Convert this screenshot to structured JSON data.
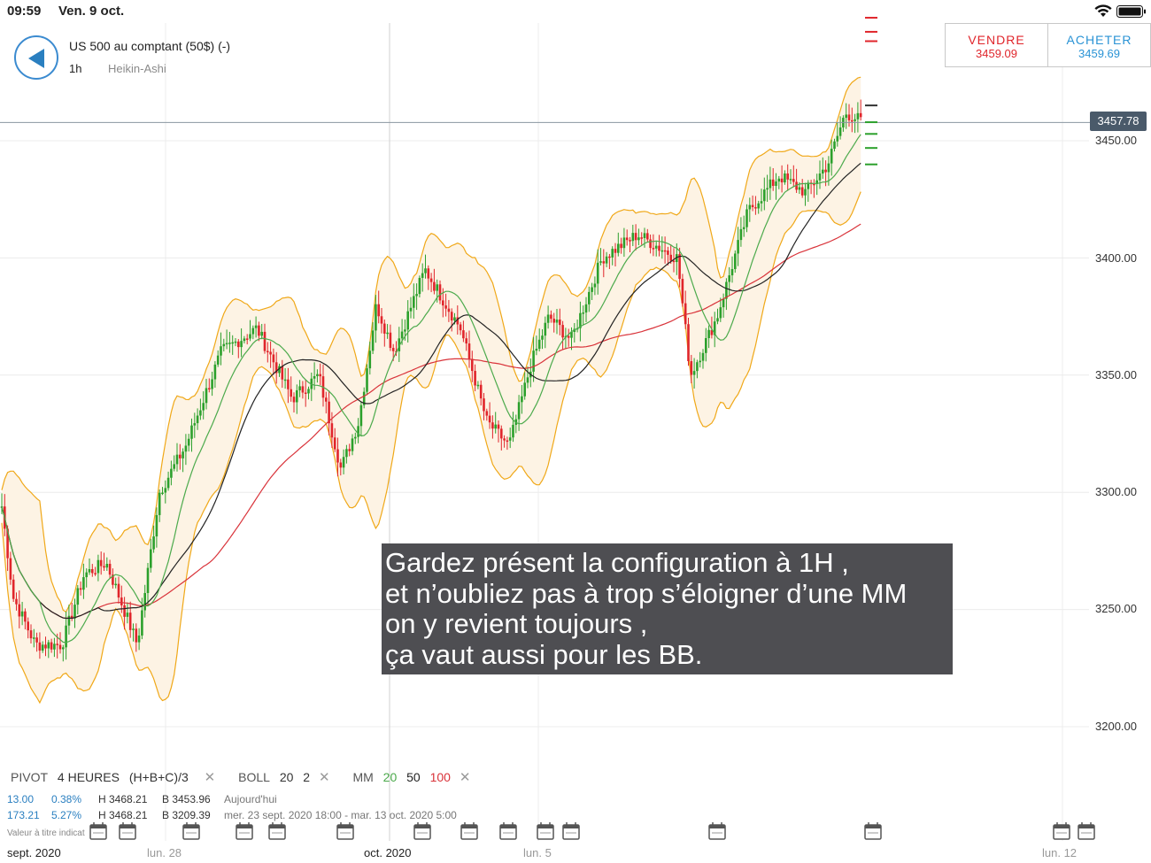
{
  "status_bar": {
    "time": "09:59",
    "date": "Ven. 9 oct."
  },
  "header": {
    "instrument": "US 500 au comptant (50$) (-)",
    "timeframe": "1h",
    "chart_style": "Heikin-Ashi"
  },
  "trade": {
    "sell_label": "VENDRE",
    "sell_price": "3459.09",
    "buy_label": "ACHETER",
    "buy_price": "3459.69"
  },
  "current_price": "3457.78",
  "annotation": {
    "lines": [
      "Gardez présent la configuration à 1H ,",
      "et n’oubliez pas à trop s’éloigner d’une MM",
      "on y revient toujours ,",
      "ça vaut aussi pour les BB."
    ]
  },
  "legend": {
    "pivot_label": "PIVOT",
    "pivot_period": "4 HEURES",
    "pivot_formula": "(H+B+C)/3",
    "boll_label": "BOLL",
    "boll_period": "20",
    "boll_dev": "2",
    "mm_label": "MM",
    "mm_1": "20",
    "mm_2": "50",
    "mm_3": "100",
    "close_glyph": "✕"
  },
  "info": {
    "row1": {
      "change": "13.00",
      "pct": "0.38%",
      "high": "H 3468.21",
      "low": "B 3453.96",
      "period": "Aujourd'hui"
    },
    "row2": {
      "change": "173.21",
      "pct": "5.27%",
      "high": "H 3468.21",
      "low": "B 3209.39",
      "period": "mer. 23 sept. 2020 18:00 - mar. 13 oct. 2020 5:00"
    }
  },
  "footnote": "Valeur à titre indicat",
  "x_axis_labels": {
    "sept": "sept. 2020",
    "lun28": "lun. 28",
    "oct": "oct. 2020",
    "lun5": "lun. 5",
    "lun12": "lun. 12"
  },
  "colors": {
    "up": "#2ca02c",
    "down": "#e0252b",
    "boll": "#f0a818",
    "boll_fill": "#fdf3e4",
    "ma20": "#4caa4c",
    "ma50": "#222222",
    "ma100": "#d9333a",
    "accent": "#2a93d5"
  },
  "chart_data": {
    "type": "candlestick",
    "instrument": "US 500 au comptant (50$) (-)",
    "timeframe": "1h",
    "style": "Heikin-Ashi",
    "y_ticks": [
      3200,
      3250,
      3300,
      3350,
      3400,
      3450
    ],
    "y_tick_labels": [
      "3200.00",
      "3250.00",
      "3300.00",
      "3350.00",
      "3400.00",
      "3450.00"
    ],
    "ylim": [
      3181,
      3500
    ],
    "x_labels": [
      "sept. 2020",
      "lun. 28",
      "oct. 2020",
      "lun. 5",
      "lun. 12"
    ],
    "current_price": 3457.78,
    "approx_price_path": [
      [
        0,
        3300
      ],
      [
        15,
        3255
      ],
      [
        40,
        3235
      ],
      [
        70,
        3235
      ],
      [
        95,
        3265
      ],
      [
        120,
        3270
      ],
      [
        155,
        3235
      ],
      [
        180,
        3300
      ],
      [
        210,
        3320
      ],
      [
        250,
        3360
      ],
      [
        290,
        3370
      ],
      [
        330,
        3340
      ],
      [
        360,
        3350
      ],
      [
        385,
        3310
      ],
      [
        405,
        3330
      ],
      [
        425,
        3380
      ],
      [
        445,
        3360
      ],
      [
        480,
        3395
      ],
      [
        520,
        3370
      ],
      [
        550,
        3330
      ],
      [
        575,
        3320
      ],
      [
        600,
        3355
      ],
      [
        620,
        3375
      ],
      [
        645,
        3365
      ],
      [
        680,
        3400
      ],
      [
        720,
        3410
      ],
      [
        765,
        3400
      ],
      [
        780,
        3350
      ],
      [
        810,
        3375
      ],
      [
        845,
        3420
      ],
      [
        880,
        3435
      ],
      [
        910,
        3428
      ],
      [
        935,
        3440
      ],
      [
        955,
        3462
      ],
      [
        975,
        3458
      ]
    ],
    "indicators": {
      "bollinger": {
        "period": 20,
        "deviation": 2
      },
      "moving_averages": [
        20,
        50,
        100
      ],
      "pivot": {
        "period": "4 HEURES",
        "formula": "(H+B+C)/3"
      }
    }
  }
}
